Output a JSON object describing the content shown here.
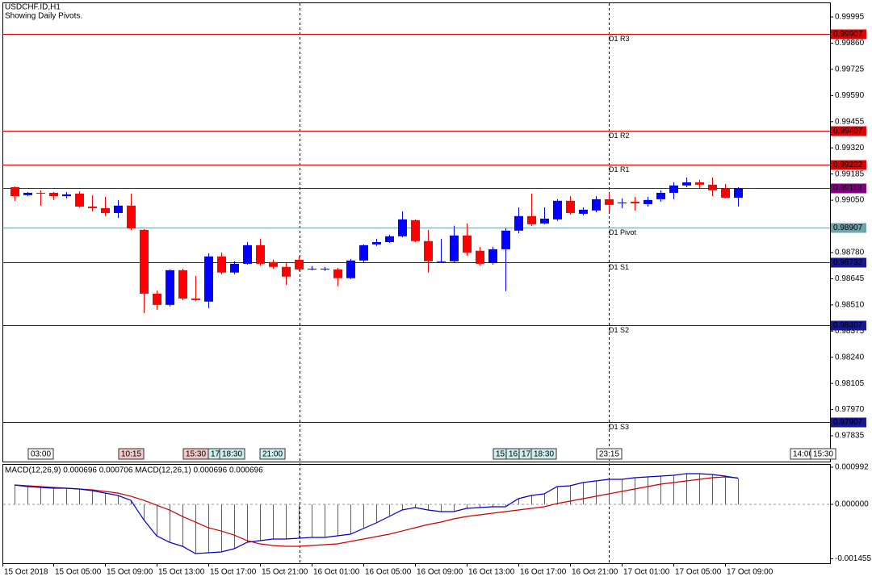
{
  "chart_data": [
    {
      "type": "candlestick",
      "title": "USDCHF.ID,H1",
      "subtitle": "Showing Daily Pivots.",
      "categories": [
        "15 Oct 2018",
        null,
        null,
        "15 Oct 05:00",
        null,
        null,
        null,
        "15 Oct 09:00",
        null,
        null,
        null,
        "15 Oct 13:00",
        null,
        null,
        null,
        "15 Oct 17:00",
        null,
        null,
        null,
        "15 Oct 21:00",
        null,
        null,
        null,
        "16 Oct 01:00",
        null,
        null,
        null,
        "16 Oct 05:00",
        null,
        null,
        null,
        "16 Oct 09:00",
        null,
        null,
        null,
        "16 Oct 13:00",
        null,
        null,
        null,
        "16 Oct 17:00",
        null,
        null,
        null,
        "16 Oct 21:00",
        null,
        null,
        null,
        "17 Oct 01:00",
        null,
        null,
        null,
        "17 Oct 05:00",
        null,
        null,
        null,
        "17 Oct 09:00",
        null
      ],
      "open": [
        0.99117,
        0.99076,
        0.99088,
        0.99088,
        0.99071,
        0.99084,
        0.99017,
        0.99009,
        0.98984,
        0.99022,
        0.98897,
        0.98568,
        0.9851,
        0.98689,
        0.98543,
        0.98527,
        0.9876,
        0.98677,
        0.98722,
        0.98818,
        0.98731,
        0.98706,
        0.98743,
        0.98693,
        0.98693,
        0.98693,
        0.98648,
        0.98739,
        0.98822,
        0.98834,
        0.98864,
        0.98947,
        0.98839,
        0.98731,
        0.98735,
        0.98868,
        0.98789,
        0.98726,
        0.98797,
        0.98893,
        0.98968,
        0.9893,
        0.98951,
        0.99047,
        0.9898,
        0.98997,
        0.99055,
        0.99034,
        0.99042,
        0.9903,
        0.99055,
        0.99088,
        0.99126,
        0.99142,
        0.9913,
        0.99109,
        0.99063
      ],
      "high": [
        0.99121,
        0.99092,
        0.99101,
        0.99092,
        0.99092,
        0.99096,
        0.99076,
        0.99067,
        0.99051,
        0.99084,
        0.98901,
        0.98585,
        0.98693,
        0.98697,
        0.9866,
        0.98776,
        0.9878,
        0.98735,
        0.98834,
        0.98851,
        0.98743,
        0.98726,
        0.9876,
        0.9871,
        0.98706,
        0.98702,
        0.98747,
        0.98822,
        0.98851,
        0.98872,
        0.98992,
        0.98951,
        0.98897,
        0.98851,
        0.98918,
        0.9893,
        0.98809,
        0.98809,
        0.98905,
        0.99013,
        0.99084,
        0.99013,
        0.99055,
        0.99071,
        0.99013,
        0.99071,
        0.99084,
        0.99059,
        0.99067,
        0.99067,
        0.99101,
        0.99142,
        0.99167,
        0.99155,
        0.99167,
        0.99134,
        0.99117
      ],
      "low": [
        0.99047,
        0.99071,
        0.99022,
        0.99051,
        0.99059,
        0.99013,
        0.98992,
        0.98968,
        0.98959,
        0.98897,
        0.98468,
        0.98485,
        0.98502,
        0.98535,
        0.98531,
        0.98493,
        0.98668,
        0.98668,
        0.98718,
        0.98714,
        0.98697,
        0.98614,
        0.98685,
        0.98689,
        0.98685,
        0.98606,
        0.98643,
        0.98731,
        0.98814,
        0.9883,
        0.98859,
        0.98834,
        0.98677,
        0.98726,
        0.98726,
        0.98764,
        0.98714,
        0.98718,
        0.98581,
        0.9888,
        0.98918,
        0.98926,
        0.98943,
        0.98976,
        0.98972,
        0.98988,
        0.98992,
        0.99009,
        0.98997,
        0.99017,
        0.99042,
        0.99055,
        0.99117,
        0.99113,
        0.99071,
        0.99059,
        0.99017
      ],
      "close": [
        0.99071,
        0.99088,
        0.99084,
        0.99071,
        0.9908,
        0.99017,
        0.99009,
        0.98984,
        0.99022,
        0.98905,
        0.98568,
        0.9851,
        0.98689,
        0.98543,
        0.98535,
        0.9876,
        0.98677,
        0.98722,
        0.98818,
        0.98722,
        0.98706,
        0.98656,
        0.98693,
        0.98697,
        0.98697,
        0.98648,
        0.98739,
        0.98818,
        0.98834,
        0.98864,
        0.98951,
        0.98839,
        0.98735,
        0.98735,
        0.98868,
        0.9878,
        0.98722,
        0.98797,
        0.98893,
        0.98968,
        0.98926,
        0.98955,
        0.99047,
        0.98984,
        0.99001,
        0.99055,
        0.99026,
        0.99038,
        0.99034,
        0.99051,
        0.99088,
        0.99126,
        0.99142,
        0.9913,
        0.99101,
        0.99063,
        0.99113
      ],
      "up_color": "#0000ff",
      "down_color": "#ff0000",
      "ylim": [
        0.97702,
        1.0007
      ],
      "yticks": [
        0.99995,
        {
          "value": 0.9986,
          "label": "0.99860"
        },
        0.99725,
        {
          "value": 0.9959,
          "label": "0.99590"
        },
        0.99455,
        {
          "value": 0.9932,
          "label": "0.99320"
        },
        0.99185,
        {
          "value": 0.9905,
          "label": "0.99050"
        },
        {
          "value": 0.9878,
          "label": "0.98780"
        },
        0.98645,
        {
          "value": 0.9851,
          "label": "0.98510"
        },
        0.98375,
        {
          "value": 0.9824,
          "label": "0.98240"
        },
        0.98105,
        {
          "value": 0.9797,
          "label": "0.97970"
        },
        0.97835
      ],
      "pivots": [
        {
          "name": "D1 R3",
          "value": 0.99907,
          "color": "#e00000"
        },
        {
          "name": "D1 R2",
          "value": 0.99407,
          "color": "#e00000"
        },
        {
          "name": "D1 R1",
          "value": 0.99232,
          "color": "#e00000"
        },
        {
          "name": "D1 Pivot",
          "value": 0.98907,
          "color": "#6fa4ad"
        },
        {
          "name": "D1 S1",
          "value": 0.98732,
          "color": "#18188f"
        },
        {
          "name": "D1 S2",
          "value": 0.98407,
          "color": "#18188f"
        },
        {
          "name": "D1 S3",
          "value": 0.97907,
          "color": "#18188f"
        }
      ],
      "current_price": {
        "value": 0.99113,
        "color": "#800080"
      },
      "events": [
        {
          "label": "03:00",
          "color": "#ffffff"
        },
        {
          "label": "10:15",
          "color": "#f5c6c6"
        },
        {
          "label": "15:30",
          "color": "#f5c6c6"
        },
        {
          "label": "17:",
          "color": "#cdeeee"
        },
        {
          "label": "18:30",
          "color": "#cdeeee"
        },
        {
          "label": "21:00",
          "color": "#cdeeee"
        },
        {
          "label": "15:",
          "color": "#cdeeee"
        },
        {
          "label": "16:",
          "color": "#cdeeee"
        },
        {
          "label": "17:",
          "color": "#cdeeee"
        },
        {
          "label": "18:30",
          "color": "#cdeeee"
        },
        {
          "label": "23:15",
          "color": "#ffffff"
        },
        {
          "label": "14:00",
          "color": "#ffffff"
        },
        {
          "label": "15:30",
          "color": "#ffffff"
        }
      ]
    },
    {
      "type": "macd",
      "label": "MACD(12,26,9) 0.000696 0.000706 MACD(12,26,1) 0.000696 0.000696",
      "main": [
        0.000518,
        0.000474,
        0.000453,
        0.000431,
        0.000431,
        0.00041,
        0.000367,
        0.000302,
        0.000237,
        0.000108,
        -0.00041,
        -0.000841,
        -0.001014,
        -0.001121,
        -0.001316,
        -0.001294,
        -0.001272,
        -0.001186,
        -0.001014,
        -0.00097,
        -0.000927,
        -0.000927,
        -0.000906,
        -0.000884,
        -0.000884,
        -0.000841,
        -0.000798,
        -0.000647,
        -0.000496,
        -0.000324,
        -0.000151,
        -8.6e-05,
        -0.000151,
        -0.000194,
        -0.000194,
        -0.000108,
        -8.6e-05,
        -6.5e-05,
        -6.5e-05,
        0.000151,
        0.000237,
        0.00028,
        0.000474,
        0.000496,
        0.000582,
        0.000625,
        0.000669,
        0.000669,
        0.000712,
        0.000733,
        0.000755,
        0.000776,
        0.00082,
        0.00082,
        0.000798,
        0.000755,
        0.000696
      ],
      "signal": [
        0.000518,
        0.000496,
        0.000474,
        0.000453,
        0.000431,
        0.00041,
        0.000388,
        0.000345,
        0.000302,
        0.000216,
        0.000108,
        -2.2e-05,
        -0.000151,
        -0.000324,
        -0.000474,
        -0.000625,
        -0.000712,
        -0.00082,
        -0.00097,
        -0.001057,
        -0.0011,
        -0.001121,
        -0.001121,
        -0.0011,
        -0.001078,
        -0.001057,
        -0.000992,
        -0.000927,
        -0.000863,
        -0.000798,
        -0.000712,
        -0.000625,
        -0.000539,
        -0.000474,
        -0.000388,
        -0.000324,
        -0.00028,
        -0.000237,
        -0.000194,
        -0.000151,
        -0.000108,
        -6.5e-05,
        2.2e-05,
        8.6e-05,
        0.000151,
        0.000216,
        0.00028,
        0.000345,
        0.00041,
        0.000474,
        0.000539,
        0.000582,
        0.000625,
        0.000669,
        0.000712,
        0.000733,
        0.000706
      ],
      "histogram_color": "#606060",
      "main_color": "#0000cc",
      "signal_color": "#cc0000",
      "ylim": [
        -0.001574,
        0.001078
      ],
      "yticks": [
        0.000992,
        {
          "value": 0,
          "label": "0.000000"
        },
        -0.001455
      ]
    }
  ]
}
